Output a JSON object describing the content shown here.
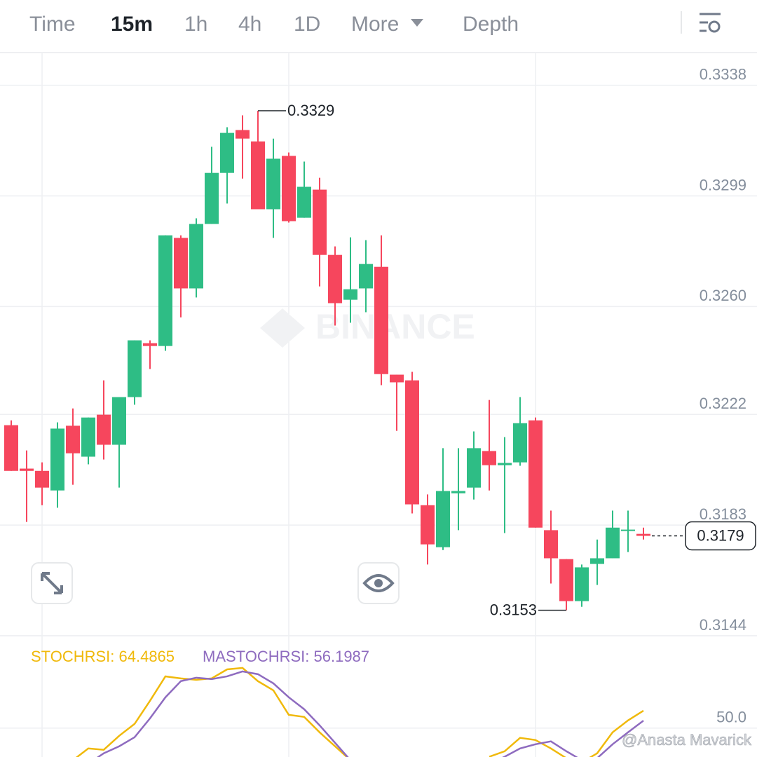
{
  "toolbar": {
    "tabs": [
      "Time",
      "15m",
      "1h",
      "4h",
      "1D",
      "More",
      "Depth"
    ],
    "active": "15m"
  },
  "chart_data": [
    {
      "type": "candlestick",
      "open": [
        0.32182,
        0.32029,
        0.32021,
        0.31952,
        0.3218,
        0.32071,
        0.32219,
        0.32113,
        0.32281,
        0.32471,
        0.32461,
        0.32842,
        0.32664,
        0.32891,
        0.33071,
        0.33222,
        0.33182,
        0.32943,
        0.33131,
        0.32913,
        0.33012,
        0.32782,
        0.32624,
        0.32664,
        0.3274,
        0.3236,
        0.3234,
        0.319,
        0.31752,
        0.31942,
        0.31962,
        0.32091,
        0.32041,
        0.32051,
        0.32199,
        0.31812,
        0.3171,
        0.31562,
        0.31693,
        0.31713,
        0.31812,
        0.31799
      ],
      "high": [
        0.32199,
        0.32093,
        0.32051,
        0.32192,
        0.32241,
        0.32209,
        0.3234,
        0.32281,
        0.32481,
        0.32481,
        0.32851,
        0.32851,
        0.32911,
        0.33163,
        0.33232,
        0.33274,
        0.3329,
        0.33192,
        0.33143,
        0.33111,
        0.33054,
        0.32812,
        0.32844,
        0.32834,
        0.32851,
        0.3236,
        0.3237,
        0.31938,
        0.32101,
        0.32101,
        0.3216,
        0.32271,
        0.3214,
        0.32281,
        0.32209,
        0.31881,
        0.3171,
        0.31691,
        0.31779,
        0.31881,
        0.31881,
        0.31821
      ],
      "low": [
        0.32021,
        0.31841,
        0.319,
        0.31891,
        0.31972,
        0.32044,
        0.32061,
        0.31962,
        0.32254,
        0.3238,
        0.32444,
        0.32562,
        0.32632,
        0.32891,
        0.32963,
        0.33051,
        0.32943,
        0.32842,
        0.32896,
        0.32913,
        0.32671,
        0.32533,
        0.32543,
        0.3258,
        0.32323,
        0.32162,
        0.31871,
        0.31691,
        0.31742,
        0.31812,
        0.3192,
        0.31952,
        0.31802,
        0.32039,
        0.31821,
        0.31624,
        0.3153,
        0.31542,
        0.31619,
        0.31713,
        0.31735,
        0.31779
      ],
      "close": [
        0.32021,
        0.32021,
        0.31962,
        0.3217,
        0.32083,
        0.32209,
        0.32113,
        0.32281,
        0.32481,
        0.32461,
        0.32851,
        0.32664,
        0.32891,
        0.33071,
        0.33212,
        0.33192,
        0.32943,
        0.33121,
        0.32901,
        0.33022,
        0.32782,
        0.32612,
        0.32661,
        0.3275,
        0.32362,
        0.32333,
        0.31903,
        0.31762,
        0.3195,
        0.3195,
        0.32101,
        0.32041,
        0.32049,
        0.32189,
        0.31821,
        0.31713,
        0.31562,
        0.31681,
        0.31713,
        0.31821,
        0.31814,
        0.31792
      ],
      "up_color": "#2ebd85",
      "down_color": "#f6465d",
      "ylim": [
        0.3144,
        0.335
      ],
      "yticks": [
        0.3144,
        0.3183,
        0.3222,
        {
          "value": 0.326,
          "label": "0.3260"
        },
        0.3299,
        0.3338
      ],
      "grid": true,
      "high_label": "0.3329",
      "low_label": "0.3153",
      "last_price_label": "0.3179",
      "watermark": "BINANCE"
    },
    {
      "type": "line",
      "series": [
        {
          "name": "STOCHRSI: 64.4865",
          "color": "#f0b90b",
          "values": [
            null,
            null,
            null,
            null,
            23.3,
            33.1,
            32.0,
            43.6,
            53.5,
            72.7,
            93.0,
            91.3,
            90.1,
            91.3,
            98.8,
            100,
            89.0,
            81.4,
            61.0,
            59.3,
            46.5,
            34.9,
            23.3,
            null,
            null,
            null,
            null,
            null,
            null,
            null,
            null,
            26.2,
            30.8,
            41.9,
            40.1,
            33.1,
            25.0,
            21.5,
            29.1,
            46.5,
            56.4,
            64.4865
          ]
        },
        {
          "name": "MASTOCHRSI: 56.1987",
          "color": "#8e6bbf",
          "values": [
            null,
            null,
            null,
            null,
            null,
            20.3,
            29.1,
            34.9,
            42.4,
            58.1,
            75.6,
            89.0,
            91.9,
            90.7,
            93.0,
            97.1,
            94.8,
            87.2,
            75.6,
            65.7,
            52.3,
            37.8,
            23.3,
            null,
            null,
            null,
            null,
            null,
            null,
            null,
            null,
            20.3,
            26.2,
            33.1,
            36.6,
            39.0,
            30.8,
            23.3,
            25.0,
            36.6,
            46.5,
            56.1987
          ]
        }
      ],
      "ylim": [
        26,
        125
      ],
      "yticks": [
        {
          "value": 50,
          "label": "50.0"
        }
      ],
      "grid": true
    }
  ],
  "credit": "@Anasta Mavarick"
}
